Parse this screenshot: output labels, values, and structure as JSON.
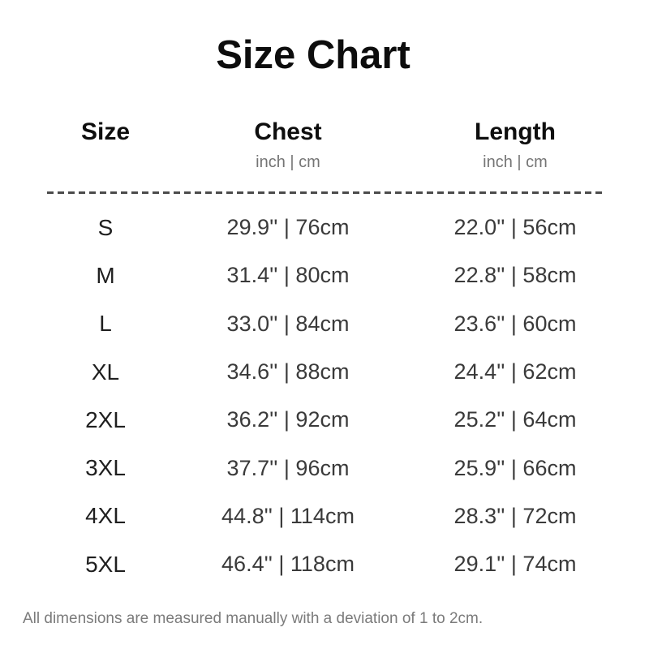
{
  "title": "Size Chart",
  "table": {
    "columns": [
      {
        "label": "Size",
        "sub": ""
      },
      {
        "label": "Chest",
        "sub": "inch | cm"
      },
      {
        "label": "Length",
        "sub": "inch | cm"
      }
    ],
    "rows": [
      {
        "size": "S",
        "chest": "29.9'' | 76cm",
        "length": "22.0'' | 56cm"
      },
      {
        "size": "M",
        "chest": "31.4'' | 80cm",
        "length": "22.8'' | 58cm"
      },
      {
        "size": "L",
        "chest": "33.0'' | 84cm",
        "length": "23.6'' | 60cm"
      },
      {
        "size": "XL",
        "chest": "34.6'' | 88cm",
        "length": "24.4'' | 62cm"
      },
      {
        "size": "2XL",
        "chest": "36.2'' | 92cm",
        "length": "25.2'' | 64cm"
      },
      {
        "size": "3XL",
        "chest": "37.7'' | 96cm",
        "length": "25.9'' | 66cm"
      },
      {
        "size": "4XL",
        "chest": "44.8'' | 114cm",
        "length": "28.3'' | 72cm"
      },
      {
        "size": "5XL",
        "chest": "46.4'' | 118cm",
        "length": "29.1'' | 74cm"
      }
    ]
  },
  "footer": "All dimensions are measured manually with a deviation of 1 to 2cm.",
  "colors": {
    "background": "#ffffff",
    "title_text": "#0d0d0d",
    "header_text": "#0e0e0e",
    "subheader_text": "#757575",
    "size_label_text": "#1f1f1f",
    "value_text": "#3a3a3a",
    "divider": "#4b4b4b",
    "footer_text": "#7b7b7b"
  },
  "chart_data": {
    "type": "table",
    "title": "Size Chart",
    "columns": [
      "Size",
      "Chest (inch)",
      "Chest (cm)",
      "Length (inch)",
      "Length (cm)"
    ],
    "rows": [
      [
        "S",
        29.9,
        76,
        22.0,
        56
      ],
      [
        "M",
        31.4,
        80,
        22.8,
        58
      ],
      [
        "L",
        33.0,
        84,
        23.6,
        60
      ],
      [
        "XL",
        34.6,
        88,
        24.4,
        62
      ],
      [
        "2XL",
        36.2,
        92,
        25.2,
        64
      ],
      [
        "3XL",
        37.7,
        96,
        25.9,
        66
      ],
      [
        "4XL",
        44.8,
        114,
        28.3,
        72
      ],
      [
        "5XL",
        46.4,
        118,
        29.1,
        74
      ]
    ],
    "note": "All dimensions are measured manually with a deviation of 1 to 2cm."
  }
}
